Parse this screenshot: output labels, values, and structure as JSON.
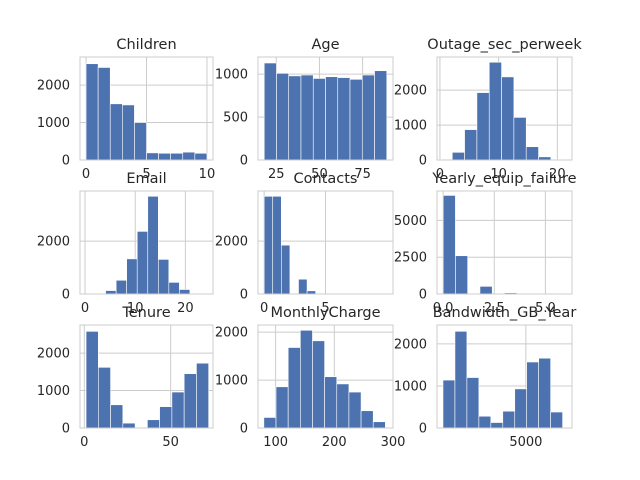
{
  "colors": {
    "bar": "#4c72b0",
    "grid": "#cccccc",
    "text": "#262626",
    "background": "#ffffff"
  },
  "chart_data": [
    {
      "type": "bar",
      "title": "Children",
      "xlim": [
        -0.5,
        10.5
      ],
      "ylim": [
        0,
        2750
      ],
      "bins": [
        [
          0,
          1
        ],
        [
          1,
          2
        ],
        [
          2,
          3
        ],
        [
          3,
          4
        ],
        [
          4,
          5
        ],
        [
          5,
          6
        ],
        [
          6,
          7
        ],
        [
          7,
          8
        ],
        [
          8,
          9
        ],
        [
          9,
          10
        ]
      ],
      "values": [
        2570,
        2470,
        1500,
        1470,
        1000,
        190,
        180,
        180,
        210,
        180
      ],
      "xticks": [
        0,
        5,
        10
      ],
      "xtick_labels": [
        "0",
        "5",
        "10"
      ],
      "yticks": [
        0,
        1000,
        2000
      ],
      "ytick_labels": [
        "0",
        "1000",
        "2000"
      ]
    },
    {
      "type": "bar",
      "title": "Age",
      "xlim": [
        14.4,
        92.6
      ],
      "ylim": [
        0,
        1200
      ],
      "bins": [
        [
          18,
          25.1
        ],
        [
          25.1,
          32.2
        ],
        [
          32.2,
          39.3
        ],
        [
          39.3,
          46.4
        ],
        [
          46.4,
          53.5
        ],
        [
          53.5,
          60.6
        ],
        [
          60.6,
          67.7
        ],
        [
          67.7,
          74.8
        ],
        [
          74.8,
          81.9
        ],
        [
          81.9,
          89
        ]
      ],
      "values": [
        1130,
        1010,
        980,
        990,
        950,
        970,
        960,
        940,
        990,
        1040
      ],
      "xticks": [
        25,
        50,
        75
      ],
      "xtick_labels": [
        "25",
        "50",
        "75"
      ],
      "yticks": [
        0,
        500,
        1000
      ],
      "ytick_labels": [
        "0",
        "500",
        "1000"
      ]
    },
    {
      "type": "bar",
      "title": "Outage_sec_perweek",
      "xlim": [
        -0.5,
        22.5
      ],
      "ylim": [
        0,
        2950
      ],
      "bins": [
        [
          0,
          2.1
        ],
        [
          2.1,
          4.2
        ],
        [
          4.2,
          6.3
        ],
        [
          6.3,
          8.4
        ],
        [
          8.4,
          10.5
        ],
        [
          10.5,
          12.6
        ],
        [
          12.6,
          14.7
        ],
        [
          14.7,
          16.8
        ],
        [
          16.8,
          18.9
        ],
        [
          18.9,
          21
        ]
      ],
      "values": [
        15,
        220,
        870,
        1930,
        2800,
        2380,
        1220,
        380,
        90,
        10
      ],
      "xticks": [
        0,
        10,
        20
      ],
      "xtick_labels": [
        "0",
        "10",
        "20"
      ],
      "yticks": [
        0,
        1000,
        2000
      ],
      "ytick_labels": [
        "0",
        "1000",
        "2000"
      ]
    },
    {
      "type": "bar",
      "title": "Email",
      "xlim": [
        -1,
        25.5
      ],
      "ylim": [
        0,
        3900
      ],
      "bins": [
        [
          2,
          4.1
        ],
        [
          4.1,
          6.2
        ],
        [
          6.2,
          8.3
        ],
        [
          8.3,
          10.4
        ],
        [
          10.4,
          12.5
        ],
        [
          12.5,
          14.6
        ],
        [
          14.6,
          16.7
        ],
        [
          16.7,
          18.8
        ],
        [
          18.8,
          20.9
        ],
        [
          20.9,
          23
        ]
      ],
      "values": [
        30,
        130,
        520,
        1330,
        2370,
        3700,
        1310,
        440,
        170,
        30
      ],
      "xticks": [
        0,
        10,
        20
      ],
      "xtick_labels": [
        "0",
        "10",
        "20"
      ],
      "yticks": [
        0,
        2000
      ],
      "ytick_labels": [
        "0",
        "2000"
      ]
    },
    {
      "type": "bar",
      "title": "Contacts",
      "xlim": [
        -0.5,
        10.5
      ],
      "ylim": [
        0,
        3900
      ],
      "bins": [
        [
          0,
          0.7
        ],
        [
          0.7,
          1.4
        ],
        [
          1.4,
          2.1
        ],
        [
          2.1,
          2.8
        ],
        [
          2.8,
          3.5
        ],
        [
          3.5,
          4.2
        ],
        [
          4.2,
          4.9
        ],
        [
          4.9,
          5.6
        ],
        [
          5.6,
          6.3
        ],
        [
          6.3,
          7
        ]
      ],
      "values": [
        3700,
        3700,
        1850,
        0,
        560,
        120,
        15,
        0,
        5,
        3
      ],
      "xticks": [
        0,
        5
      ],
      "xtick_labels": [
        "0",
        "5"
      ],
      "yticks": [
        0,
        2000
      ],
      "ytick_labels": [
        "0",
        "2000"
      ]
    },
    {
      "type": "bar",
      "title": "Yearly_equip_failure",
      "xlim": [
        -0.3,
        6.3
      ],
      "ylim": [
        0,
        7000
      ],
      "bins": [
        [
          0,
          0.6
        ],
        [
          0.6,
          1.2
        ],
        [
          1.2,
          1.8
        ],
        [
          1.8,
          2.4
        ],
        [
          2.4,
          3
        ],
        [
          3,
          3.6
        ],
        [
          3.6,
          4.2
        ],
        [
          4.2,
          4.8
        ],
        [
          4.8,
          5.4
        ],
        [
          5.4,
          6
        ]
      ],
      "values": [
        6700,
        2600,
        0,
        520,
        0,
        80,
        0,
        10,
        0,
        3
      ],
      "xticks": [
        0,
        2.5,
        5
      ],
      "xtick_labels": [
        "0.0",
        "2.5",
        "5.0"
      ],
      "yticks": [
        0,
        2500,
        5000
      ],
      "ytick_labels": [
        "0",
        "2500",
        "5000"
      ]
    },
    {
      "type": "bar",
      "title": "Tenure",
      "xlim": [
        -2.5,
        74.5
      ],
      "ylim": [
        0,
        2750
      ],
      "bins": [
        [
          1,
          8.1
        ],
        [
          8.1,
          15.2
        ],
        [
          15.2,
          22.3
        ],
        [
          22.3,
          29.4
        ],
        [
          29.4,
          36.5
        ],
        [
          36.5,
          43.6
        ],
        [
          43.6,
          50.7
        ],
        [
          50.7,
          57.8
        ],
        [
          57.8,
          64.9
        ],
        [
          64.9,
          72
        ]
      ],
      "values": [
        2580,
        1620,
        620,
        130,
        10,
        220,
        570,
        960,
        1450,
        1730
      ],
      "xticks": [
        0,
        50
      ],
      "xtick_labels": [
        "0",
        "50"
      ],
      "yticks": [
        0,
        1000,
        2000
      ],
      "ytick_labels": [
        "0",
        "1000",
        "2000"
      ]
    },
    {
      "type": "bar",
      "title": "MonthlyCharge",
      "xlim": [
        70,
        300
      ],
      "ylim": [
        0,
        2150
      ],
      "bins": [
        [
          80,
          100.7
        ],
        [
          100.7,
          121.4
        ],
        [
          121.4,
          142.1
        ],
        [
          142.1,
          162.8
        ],
        [
          162.8,
          183.5
        ],
        [
          183.5,
          204.2
        ],
        [
          204.2,
          224.9
        ],
        [
          224.9,
          245.6
        ],
        [
          245.6,
          266.3
        ],
        [
          266.3,
          287
        ]
      ],
      "values": [
        220,
        860,
        1680,
        2040,
        1820,
        1070,
        920,
        750,
        360,
        130
      ],
      "xticks": [
        100,
        200,
        300
      ],
      "xtick_labels": [
        "100",
        "200",
        "300"
      ],
      "yticks": [
        0,
        1000,
        2000
      ],
      "ytick_labels": [
        "0",
        "1000",
        "2000"
      ]
    },
    {
      "type": "bar",
      "title": "Bandwidth_GB_Year",
      "xlim": [
        -200,
        7700
      ],
      "ylim": [
        0,
        2450
      ],
      "bins": [
        [
          150,
          850
        ],
        [
          850,
          1550
        ],
        [
          1550,
          2250
        ],
        [
          2250,
          2950
        ],
        [
          2950,
          3650
        ],
        [
          3650,
          4350
        ],
        [
          4350,
          5050
        ],
        [
          5050,
          5750
        ],
        [
          5750,
          6450
        ],
        [
          6450,
          7150
        ]
      ],
      "values": [
        1140,
        2300,
        1200,
        280,
        130,
        400,
        930,
        1570,
        1660,
        380
      ],
      "xticks": [
        5000
      ],
      "xtick_labels": [
        "5000"
      ],
      "yticks": [
        0,
        1000,
        2000
      ],
      "ytick_labels": [
        "0",
        "1000",
        "2000"
      ]
    }
  ]
}
